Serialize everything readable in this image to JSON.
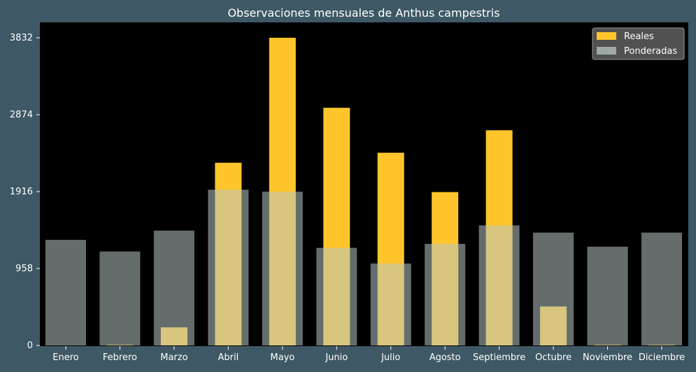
{
  "chart_data": {
    "type": "bar",
    "title": "Observaciones mensuales de Anthus campestris",
    "xlabel": "",
    "ylabel": "",
    "categories": [
      "Enero",
      "Febrero",
      "Marzo",
      "Abril",
      "Mayo",
      "Junio",
      "Julio",
      "Agosto",
      "Septiembre",
      "Octubre",
      "Noviembre",
      "Diciembre"
    ],
    "series": [
      {
        "name": "Reales",
        "color": "#ffc52b",
        "values": [
          0,
          8,
          225,
          2275,
          3832,
          2960,
          2400,
          1910,
          2680,
          485,
          8,
          8
        ]
      },
      {
        "name": "Ponderadas",
        "color": "#b8c6c4",
        "opacity": 0.55,
        "values": [
          1315,
          1170,
          1430,
          1940,
          1915,
          1215,
          1020,
          1265,
          1495,
          1405,
          1230,
          1405
        ]
      }
    ],
    "yticks": [
      0,
      958,
      1916,
      2874,
      3832
    ],
    "ylim": [
      0,
      3832
    ],
    "grid": false,
    "legend_position": "top-right",
    "plot_background": "#000000",
    "figure_background": "#3f5865",
    "text_color": "#ffffff"
  }
}
